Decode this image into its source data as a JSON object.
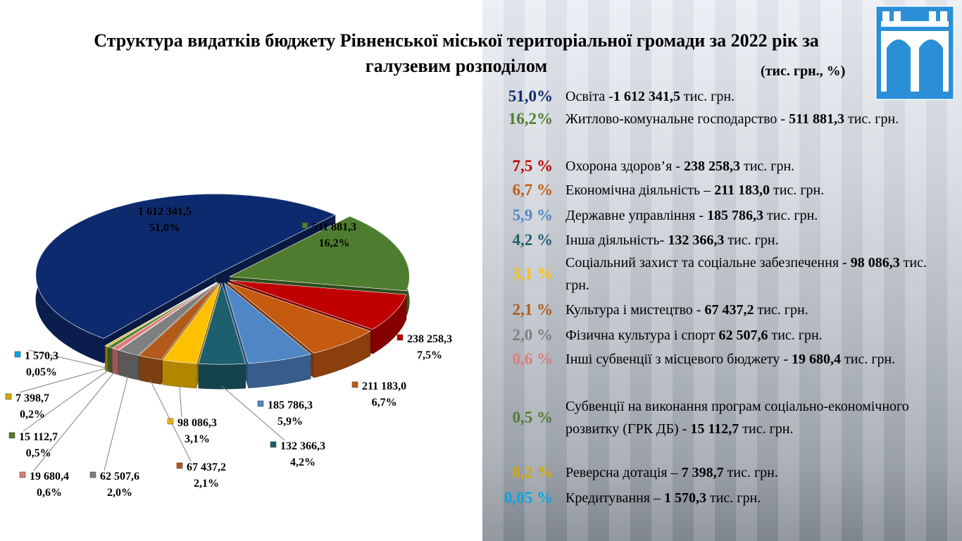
{
  "chart_data": {
    "type": "pie",
    "title": "Структура видатків бюджету Рівненської міської територіальної громади за 2022 рік за галузевим розподілом",
    "subtitle": "(тис. грн., %)",
    "unit": "тис. грн.",
    "categories": [
      "Освіта -",
      "Житлово-комунальне господарство - ",
      "Охорона здоров’я - ",
      "Економічна діяльність – ",
      "Державне управління - ",
      "Інша діяльність- ",
      "Соціальний захист та соціальне забезпечення - ",
      "Культура і мистецтво - ",
      "Фізична культура і спорт ",
      "Інші субвенції з місцевого бюджету - ",
      "Субвенції на виконання програм соціально-економічного розвитку (ГРК ДБ) - ",
      "Реверсна дотація – ",
      "Кредитування – "
    ],
    "values": [
      1612341.5,
      511881.3,
      238258.3,
      211183.0,
      185786.3,
      132366.3,
      98086.3,
      67437.2,
      62507.6,
      19680.4,
      15112.7,
      7398.7,
      1570.3
    ],
    "value_labels": [
      "1 612 341,5",
      "511 881,3",
      "238 258,3",
      "211 183,0",
      "185 786,3",
      "132 366,3",
      "98 086,3",
      "67 437,2",
      "62 507,6",
      "19 680,4",
      "15 112,7",
      "7 398,7",
      "1 570,3"
    ],
    "percent_labels": [
      "51,0%",
      "16,2%",
      "7,5%",
      "6,7%",
      "5,9%",
      "4,2%",
      "3,1%",
      "2,1%",
      "2,0%",
      "0,6%",
      "0,5%",
      "0,2%",
      "0,05%"
    ],
    "legend_percent_labels": [
      "51,0%",
      "16,2%",
      "7,5 %",
      "6,7 %",
      "5,9 %",
      "4,2 %",
      "3,1 %",
      "2,1 %",
      "2,0 %",
      "0,6 %",
      "0,5 %",
      "0,2 %",
      "0,05 %"
    ],
    "colors": [
      "#0e2a6e",
      "#4f7d2f",
      "#c00000",
      "#c55a11",
      "#4f86c6",
      "#1d5f6e",
      "#ffc000",
      "#b35a1a",
      "#7f7f7f",
      "#e07b7b",
      "#4f7d2f",
      "#d4a800",
      "#00a6e6"
    ]
  }
}
